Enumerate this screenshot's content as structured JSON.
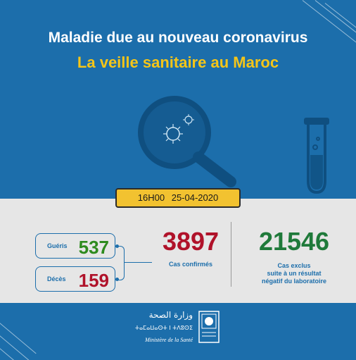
{
  "header": {
    "title_line1": "Maladie due au nouveau coronavirus",
    "title_line2": "La veille sanitaire au Maroc"
  },
  "date": {
    "time": "16H00",
    "day": "25-04-2020"
  },
  "stats": {
    "recovered": {
      "label": "Guéris",
      "value": "537",
      "color": "#2e8b1e"
    },
    "deaths": {
      "label": "Décès",
      "value": "159",
      "color": "#b0122a"
    },
    "confirmed": {
      "value": "3897",
      "label": "Cas confirmés",
      "color": "#b0122a"
    },
    "excluded": {
      "value": "21546",
      "label_line1": "Cas exclus",
      "label_line2": "suite à un résultat",
      "label_line3": "négatif du laboratoire",
      "color": "#1f7a3a"
    }
  },
  "footer": {
    "ministry_ar": "وزارة الصحة",
    "ministry_tz": "ⵜⴰⵎⴰⵡⴰⵙⵜ ⵏ ⵜⴷⵓⵙⵉ",
    "ministry_fr": "Ministère de la Santé"
  },
  "icons": [
    "magnifier-virus-icon",
    "test-tube-icon",
    "ministry-logo-icon"
  ],
  "colors": {
    "brand_blue": "#1c6eab",
    "accent_yellow": "#f5c518",
    "panel_gray": "#e6e6e6"
  }
}
